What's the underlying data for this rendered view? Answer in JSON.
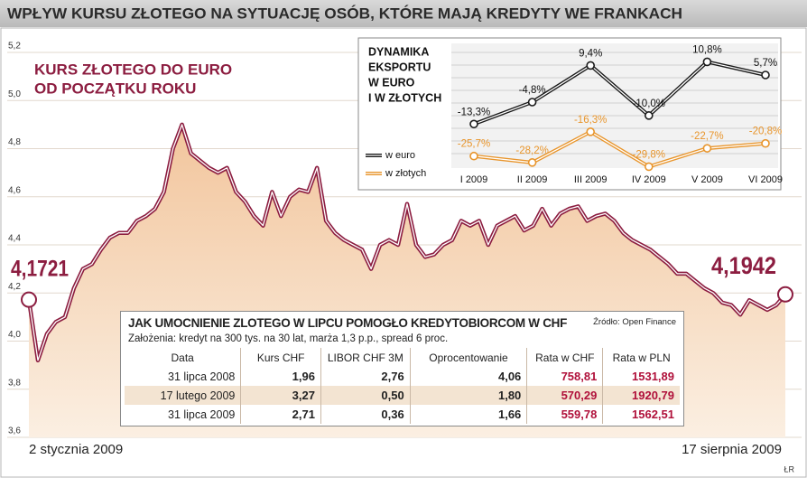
{
  "header": {
    "title": "WPŁYW KURSU ZŁOTEGO NA SYTUACJĘ OSÓB, KTÓRE MAJĄ KREDYTY WE FRANKACH"
  },
  "chart_data": [
    {
      "type": "area",
      "title": [
        "KURS ZŁOTEGO DO EURO",
        "OD POCZĄTKU ROKU"
      ],
      "start_label": "4,1721",
      "end_label": "4,1942",
      "categories": [
        "2 stycznia 2009",
        null,
        null,
        null,
        null,
        null,
        null,
        null,
        null,
        null,
        null,
        null,
        null,
        null,
        null,
        null,
        null,
        null,
        null,
        null,
        null,
        null,
        null,
        null,
        null,
        null,
        null,
        null,
        null,
        null,
        null,
        null,
        null,
        null,
        null,
        null,
        null,
        null,
        null,
        null,
        null,
        null,
        null,
        null,
        null,
        null,
        null,
        null,
        null,
        null,
        null,
        null,
        null,
        null,
        null,
        null,
        null,
        null,
        null,
        null,
        null,
        null,
        null,
        null,
        null,
        null,
        null,
        null,
        null,
        null,
        null,
        null,
        null,
        null,
        null,
        null,
        null,
        null,
        null,
        null,
        null,
        null,
        null,
        null,
        "17 sierpnia 2009"
      ],
      "values": [
        4.1721,
        3.92,
        4.03,
        4.08,
        4.1,
        4.22,
        4.3,
        4.32,
        4.38,
        4.43,
        4.45,
        4.45,
        4.5,
        4.52,
        4.55,
        4.62,
        4.8,
        4.9,
        4.78,
        4.75,
        4.72,
        4.7,
        4.72,
        4.62,
        4.58,
        4.52,
        4.48,
        4.62,
        4.52,
        4.6,
        4.63,
        4.62,
        4.72,
        4.5,
        4.45,
        4.42,
        4.4,
        4.38,
        4.3,
        4.4,
        4.42,
        4.4,
        4.57,
        4.4,
        4.35,
        4.36,
        4.4,
        4.42,
        4.5,
        4.48,
        4.5,
        4.4,
        4.48,
        4.5,
        4.52,
        4.46,
        4.48,
        4.55,
        4.48,
        4.53,
        4.55,
        4.56,
        4.5,
        4.52,
        4.53,
        4.5,
        4.45,
        4.42,
        4.4,
        4.38,
        4.35,
        4.32,
        4.28,
        4.28,
        4.25,
        4.22,
        4.2,
        4.16,
        4.15,
        4.11,
        4.17,
        4.15,
        4.13,
        4.15,
        4.1942
      ],
      "color": "#8c1d40",
      "ylim": [
        3.6,
        5.2
      ],
      "yticks": [
        {
          "value": 3.6,
          "label": "3,6"
        },
        {
          "value": 3.8,
          "label": "3,8"
        },
        {
          "value": 4.0,
          "label": "4,0"
        },
        {
          "value": 4.2,
          "label": "4,2"
        },
        {
          "value": 4.4,
          "label": "4,4"
        },
        {
          "value": 4.6,
          "label": "4,6"
        },
        {
          "value": 4.8,
          "label": "4,8"
        },
        {
          "value": 5.0,
          "label": "5,0"
        },
        {
          "value": 5.2,
          "label": "5,2"
        }
      ],
      "grid": true
    },
    {
      "type": "line",
      "title": [
        "DYNAMIKA",
        "EKSPORTU",
        "W EURO",
        "I W ZŁOTYCH"
      ],
      "categories": [
        "I 2009",
        "II 2009",
        "III 2009",
        "IV 2009",
        "V 2009",
        "VI 2009"
      ],
      "series": [
        {
          "name": "w euro",
          "color": "#1a1a1a",
          "values": [
            -13.3,
            -4.8,
            9.4,
            -10.0,
            10.8,
            5.7
          ],
          "value_labels": [
            "-13,3%",
            "-4,8%",
            "9,4%",
            "-10,0%",
            "10,8%",
            "5,7%"
          ]
        },
        {
          "name": "w złotych",
          "color": "#e8952c",
          "values": [
            -25.7,
            -28.2,
            -16.3,
            -29.8,
            -22.7,
            -20.8
          ],
          "value_labels": [
            "-25,7%",
            "-28,2%",
            "-16,3%",
            "-29,8%",
            "-22,7%",
            "-20,8%"
          ]
        }
      ],
      "ylim": [
        -30,
        19
      ]
    }
  ],
  "table": {
    "title": "JAK UMOCNIENIE ZLOTEGO W LIPCU POMOGŁO KREDYTOBIORCOM W CHF",
    "source": "Źródło: Open Finance",
    "subtitle": "Założenia: kredyt na 300 tys. na 30 lat, marża 1,3 p.p., spread 6 proc.",
    "columns": [
      "Data",
      "Kurs CHF",
      "LIBOR CHF 3M",
      "Oprocentowanie",
      "Rata w CHF",
      "Rata w PLN"
    ],
    "rows": [
      [
        "31 lipca 2008",
        "1,96",
        "2,76",
        "4,06",
        "758,81",
        "1531,89"
      ],
      [
        "17 lutego 2009",
        "3,27",
        "0,50",
        "1,80",
        "570,29",
        "1920,79"
      ],
      [
        "31 lipca 2009",
        "2,71",
        "0,36",
        "1,66",
        "559,78",
        "1562,51"
      ]
    ]
  },
  "credit": "ŁR"
}
